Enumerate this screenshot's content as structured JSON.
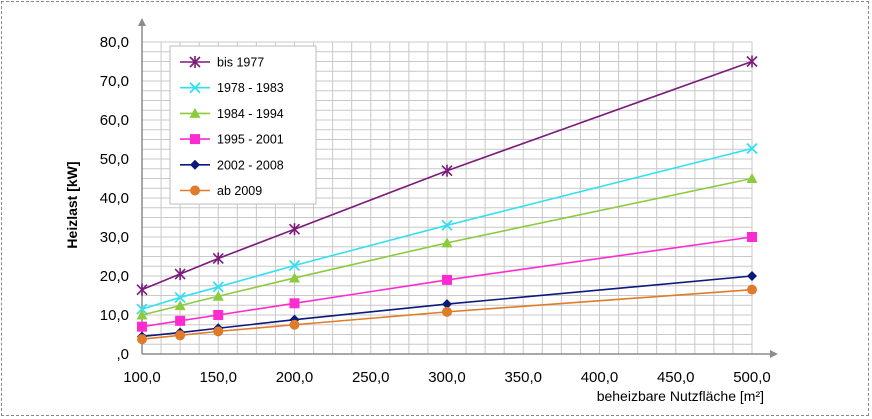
{
  "chart_data": {
    "type": "line",
    "xlabel": "beheizbare Nutzfläche [m²]",
    "ylabel": "Heizlast [kW]",
    "xlim": [
      100,
      500
    ],
    "ylim": [
      0,
      80
    ],
    "x_ticks": [
      "100,0",
      "150,0",
      "200,0",
      "250,0",
      "300,0",
      "350,0",
      "400,0",
      "450,0",
      "500,0"
    ],
    "y_ticks": [
      ",0",
      "10,0",
      "20,0",
      "30,0",
      "40,0",
      "50,0",
      "60,0",
      "70,0",
      "80,0"
    ],
    "grid": true,
    "legend_position": "top-left",
    "series": [
      {
        "name": "bis 1977",
        "color": "#7b1a7b",
        "marker": "asterisk",
        "x": [
          100,
          125,
          150,
          200,
          300,
          500
        ],
        "y": [
          16.5,
          20.5,
          24.5,
          32,
          47,
          75
        ]
      },
      {
        "name": "1978 - 1983",
        "color": "#33e0f0",
        "marker": "x",
        "x": [
          100,
          125,
          150,
          200,
          300,
          500
        ],
        "y": [
          11.5,
          14.5,
          17.2,
          22.7,
          33,
          52.7
        ]
      },
      {
        "name": "1984 - 1994",
        "color": "#8ccb3e",
        "marker": "triangle",
        "x": [
          100,
          125,
          150,
          200,
          300,
          500
        ],
        "y": [
          10,
          12.4,
          14.8,
          19.5,
          28.5,
          45
        ]
      },
      {
        "name": "1995 - 2001",
        "color": "#ff2bd0",
        "marker": "square",
        "x": [
          100,
          125,
          150,
          200,
          300,
          500
        ],
        "y": [
          7,
          8.5,
          10,
          13,
          19,
          30
        ]
      },
      {
        "name": "2002 - 2008",
        "color": "#0a1a7a",
        "marker": "diamond",
        "x": [
          100,
          125,
          150,
          200,
          300,
          500
        ],
        "y": [
          4.5,
          5.5,
          6.6,
          8.8,
          12.8,
          20
        ]
      },
      {
        "name": "ab 2009",
        "color": "#e07b2a",
        "marker": "circle",
        "x": [
          100,
          125,
          150,
          200,
          300,
          500
        ],
        "y": [
          3.8,
          4.8,
          5.8,
          7.5,
          10.8,
          16.5
        ]
      }
    ]
  }
}
